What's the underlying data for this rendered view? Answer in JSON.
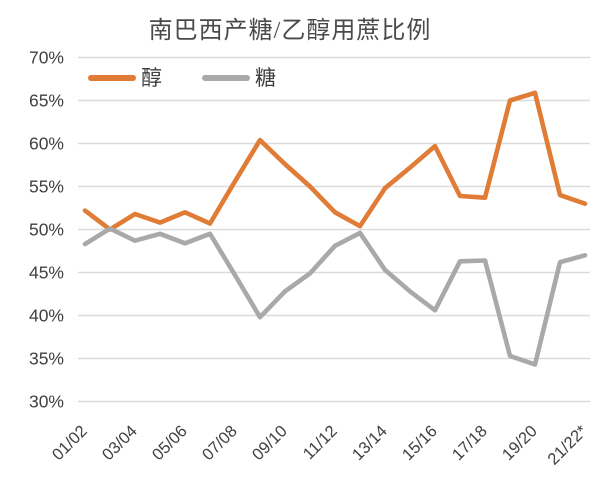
{
  "title": "南巴西产糖/乙醇用蔗比例",
  "legend": {
    "items": [
      {
        "label": "醇",
        "color": "#E07C35"
      },
      {
        "label": "糖",
        "color": "#A9A9A9"
      }
    ]
  },
  "colors": {
    "ethanol_line": "#E07C35",
    "sugar_line": "#A9A9A9",
    "gridline": "#DBDBDB",
    "axis_text": "#404040",
    "title_text": "#4a4a4a"
  },
  "chart_data": {
    "type": "line",
    "title": "南巴西产糖/乙醇用蔗比例",
    "categories": [
      "01/02",
      "02/03",
      "03/04",
      "04/05",
      "05/06",
      "06/07",
      "07/08",
      "08/09",
      "09/10",
      "10/11",
      "11/12",
      "12/13",
      "13/14",
      "14/15",
      "15/16",
      "16/17",
      "17/18",
      "18/19",
      "19/20",
      "20/21",
      "21/22*"
    ],
    "x_tick_labels": [
      "01/02",
      "03/04",
      "05/06",
      "07/08",
      "09/10",
      "11/12",
      "13/14",
      "15/16",
      "17/18",
      "19/20",
      "21/22*"
    ],
    "series": [
      {
        "name": "醇",
        "color": "#E07C35",
        "values": [
          52.2,
          50.0,
          51.8,
          50.8,
          52.0,
          50.7,
          55.6,
          60.4,
          57.6,
          55.0,
          52.0,
          50.4,
          54.8,
          57.2,
          59.7,
          53.9,
          53.7,
          65.0,
          65.9,
          54.0,
          53.0
        ]
      },
      {
        "name": "糖",
        "color": "#A9A9A9",
        "values": [
          48.3,
          50.1,
          48.7,
          49.5,
          48.4,
          49.5,
          44.7,
          39.8,
          42.8,
          44.9,
          48.1,
          49.6,
          45.3,
          42.8,
          40.6,
          46.3,
          46.4,
          35.3,
          34.3,
          46.2,
          47.0
        ]
      }
    ],
    "ylim": [
      30,
      70
    ],
    "ytick_step": 5,
    "ytick_labels": [
      "70%",
      "65%",
      "60%",
      "55%",
      "50%",
      "45%",
      "40%",
      "35%",
      "30%"
    ],
    "xlabel": "",
    "ylabel": "",
    "grid": true,
    "legend_position": "top-left",
    "x_label_rotation_deg": -45
  }
}
